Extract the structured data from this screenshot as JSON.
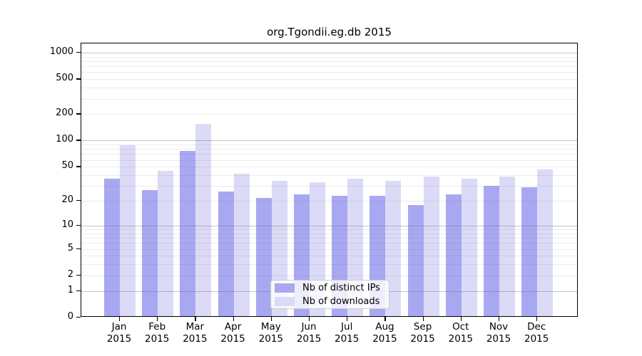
{
  "chart_data": {
    "type": "bar",
    "title": "org.Tgondii.eg.db 2015",
    "categories": [
      "Jan",
      "Feb",
      "Mar",
      "Apr",
      "May",
      "Jun",
      "Jul",
      "Aug",
      "Sep",
      "Oct",
      "Nov",
      "Dec"
    ],
    "category_year": "2015",
    "series": [
      {
        "name": "Nb of distinct IPs",
        "color": "#a8a8f2",
        "values": [
          35,
          26,
          73,
          25,
          21,
          23,
          22,
          22,
          17,
          23,
          29,
          28
        ]
      },
      {
        "name": "Nb of downloads",
        "color": "#dbdbf7",
        "values": [
          85,
          43,
          150,
          40,
          33,
          32,
          35,
          33,
          37,
          35,
          37,
          45
        ]
      }
    ],
    "y_scale": "log1p",
    "y_ticks": [
      0,
      1,
      2,
      5,
      10,
      20,
      50,
      100,
      200,
      500,
      1000
    ],
    "y_minor_gridlines": [
      2,
      3,
      4,
      5,
      6,
      7,
      8,
      9,
      20,
      30,
      40,
      50,
      60,
      70,
      80,
      90,
      200,
      300,
      400,
      500,
      600,
      700,
      800,
      900
    ],
    "y_major_gridlines": [
      1,
      10,
      100,
      1000
    ],
    "ylim": [
      0,
      1290
    ],
    "grid": true,
    "legend_position": "bottom-center",
    "colors": {
      "axis": "#000000",
      "major_grid": "#c3c3c3",
      "minor_grid": "#ebebeb",
      "background": "#ffffff"
    }
  }
}
